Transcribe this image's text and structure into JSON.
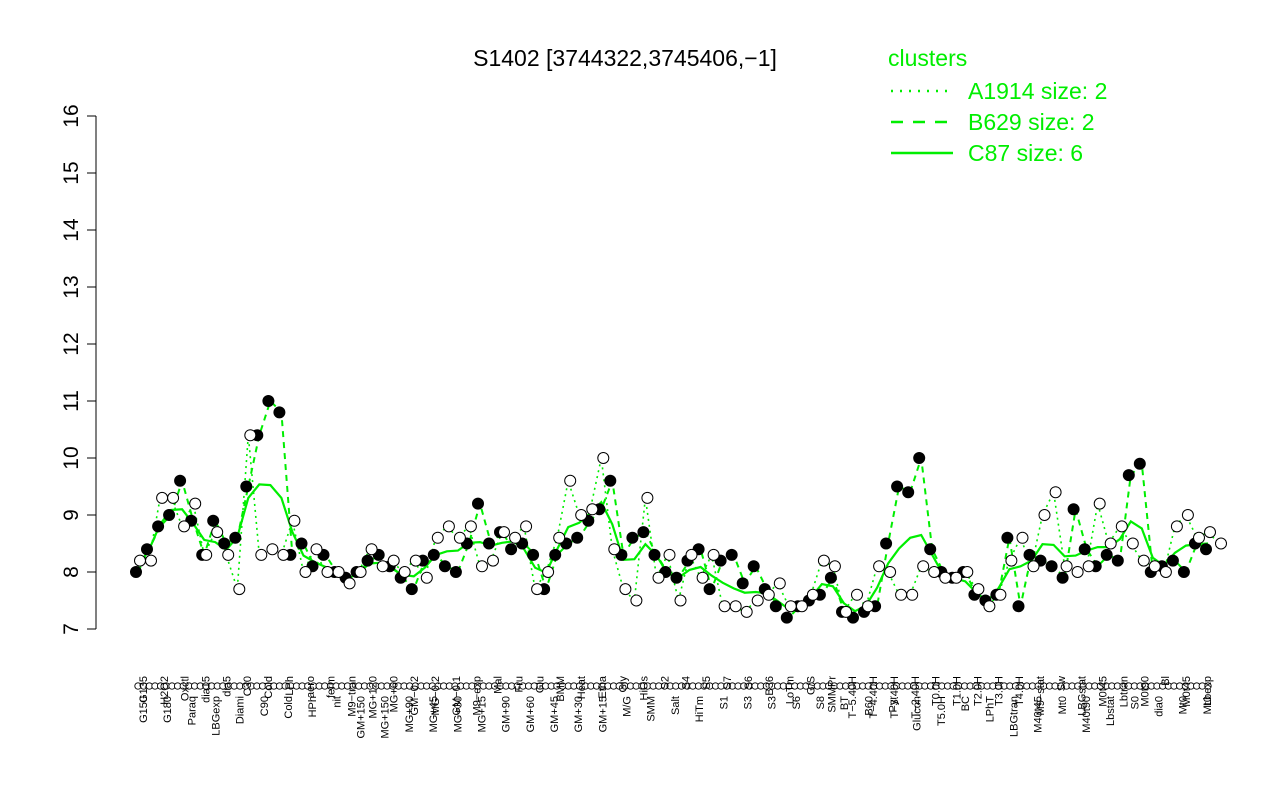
{
  "chart_data": {
    "type": "line",
    "title": "S1402 [3744322,3745406,−1]",
    "xlabel": "",
    "ylabel": "",
    "ylim": [
      7,
      16
    ],
    "yticks": [
      7,
      8,
      9,
      10,
      11,
      12,
      13,
      14,
      15,
      16
    ],
    "grid": false,
    "legend": {
      "title": "clusters",
      "placement": "top-right",
      "color": "#00ee00",
      "entries": [
        {
          "label": "A1914 size: 2",
          "style": "dotted"
        },
        {
          "label": "B629 size: 2",
          "style": "dashed"
        },
        {
          "label": "C87 size: 6",
          "style": "solid"
        }
      ]
    },
    "x_labels_upper": [
      "G135",
      "H2O2",
      "Oxctl",
      "dia15",
      "dia5",
      "C30",
      "Cold",
      "LPh",
      "aero",
      "ferm",
      "M9−tran",
      "MG+120",
      "MG+60",
      "GM−0.2",
      "MG−0.2",
      "GM−0.1",
      "M9−exp",
      "Mal",
      "Fru",
      "Glu",
      "BMM",
      "Heat",
      "Etha",
      "Gly",
      "HiOs",
      "S2",
      "S4",
      "S5",
      "S7",
      "S6",
      "B36",
      "LoTm",
      "G/S",
      "SMMPr",
      "T−5.40H",
      "T−4.40H",
      "T−3.40H",
      "T−2.40H",
      "T0.0H",
      "T1.0H",
      "T2.0H",
      "T3.0H",
      "T4.0H",
      "M9−stat",
      "Sw",
      "LBGstat",
      "M0t45",
      "Lbtran",
      "M0t90",
      "Bl",
      "M0t45",
      "Lbexp"
    ],
    "x_labels_lower": [
      "G150",
      "G180",
      "Paraq",
      "LBGexp",
      "Diami",
      "C90",
      "Cold",
      "HPh",
      "nit",
      "GM+150",
      "MG+150",
      "MG+90",
      "MG+45",
      "MG+30",
      "MG+15",
      "GM+90",
      "GM+60",
      "GM+45",
      "GM+30",
      "GM+15",
      "M/G",
      "SMM",
      "Salt",
      "HiTm",
      "S1",
      "S3",
      "S3",
      "S6",
      "S8",
      "BT",
      "B60",
      "Pyr",
      "Glucon",
      "T5.0H",
      "BC",
      "LPhT",
      "LBGtran",
      "M40t45",
      "Mt0",
      "M40t90",
      "Lbstat",
      "S0",
      "dia0",
      "Mt0",
      "Mt0"
    ],
    "cluster_colors": {
      "A1914": "#00ee00",
      "B629": "#00ee00",
      "C87": "#00ee00"
    },
    "series": [
      {
        "marker": "filled",
        "values": [
          8.0,
          8.4,
          8.8,
          9.0,
          9.6,
          8.9,
          8.3,
          8.9,
          8.5,
          8.6,
          9.5,
          10.4,
          11.0,
          10.8,
          8.3,
          8.5,
          8.1,
          8.3,
          8.0,
          7.9,
          8.0,
          8.2,
          8.3,
          8.1,
          7.9,
          7.7,
          8.2,
          8.3,
          8.1,
          8.0,
          8.5,
          9.2,
          8.5,
          8.7,
          8.4,
          8.5,
          8.3,
          7.7,
          8.3,
          8.5,
          8.6,
          8.9,
          9.1,
          9.6,
          8.3,
          8.6,
          8.7,
          8.3,
          8.0,
          7.9,
          8.2,
          8.4,
          7.7,
          8.2,
          8.3,
          7.8,
          8.1,
          7.7,
          7.4,
          7.2,
          7.4,
          7.5,
          7.6,
          7.9,
          7.3,
          7.2,
          7.3,
          7.4,
          8.5,
          9.5,
          9.4,
          10.0,
          8.4,
          8.0,
          7.9,
          8.0,
          7.6,
          7.5,
          7.6,
          8.6,
          7.4,
          8.3,
          8.2,
          8.1,
          7.9,
          9.1,
          8.4,
          8.1,
          8.3,
          8.2,
          9.7,
          9.9,
          8.0,
          8.1,
          8.2,
          8.0,
          8.5,
          8.4
        ]
      },
      {
        "marker": "open",
        "values": [
          8.2,
          8.2,
          9.3,
          9.3,
          8.8,
          9.2,
          8.3,
          8.7,
          8.3,
          7.7,
          10.4,
          8.3,
          8.4,
          8.3,
          8.9,
          8.0,
          8.4,
          8.0,
          8.0,
          7.8,
          8.0,
          8.4,
          8.1,
          8.2,
          8.0,
          8.2,
          7.9,
          8.6,
          8.8,
          8.6,
          8.8,
          8.1,
          8.2,
          8.7,
          8.6,
          8.8,
          7.7,
          8.0,
          8.6,
          9.6,
          9.0,
          9.1,
          10.0,
          8.4,
          7.7,
          7.5,
          9.3,
          7.9,
          8.3,
          7.5,
          8.3,
          7.9,
          8.3,
          7.4,
          7.4,
          7.3,
          7.5,
          7.6,
          7.8,
          7.4,
          7.4,
          7.6,
          8.2,
          8.1,
          7.3,
          7.6,
          7.4,
          8.1,
          8.0,
          7.6,
          7.6,
          8.1,
          8.0,
          7.9,
          7.9,
          8.0,
          7.7,
          7.4,
          7.6,
          8.2,
          8.6,
          8.1,
          9.0,
          9.4,
          8.1,
          8.0,
          8.1,
          9.2,
          8.5,
          8.8,
          8.5,
          8.2,
          8.1,
          8.0,
          8.8,
          9.0,
          8.6,
          8.7,
          8.5
        ]
      }
    ]
  }
}
